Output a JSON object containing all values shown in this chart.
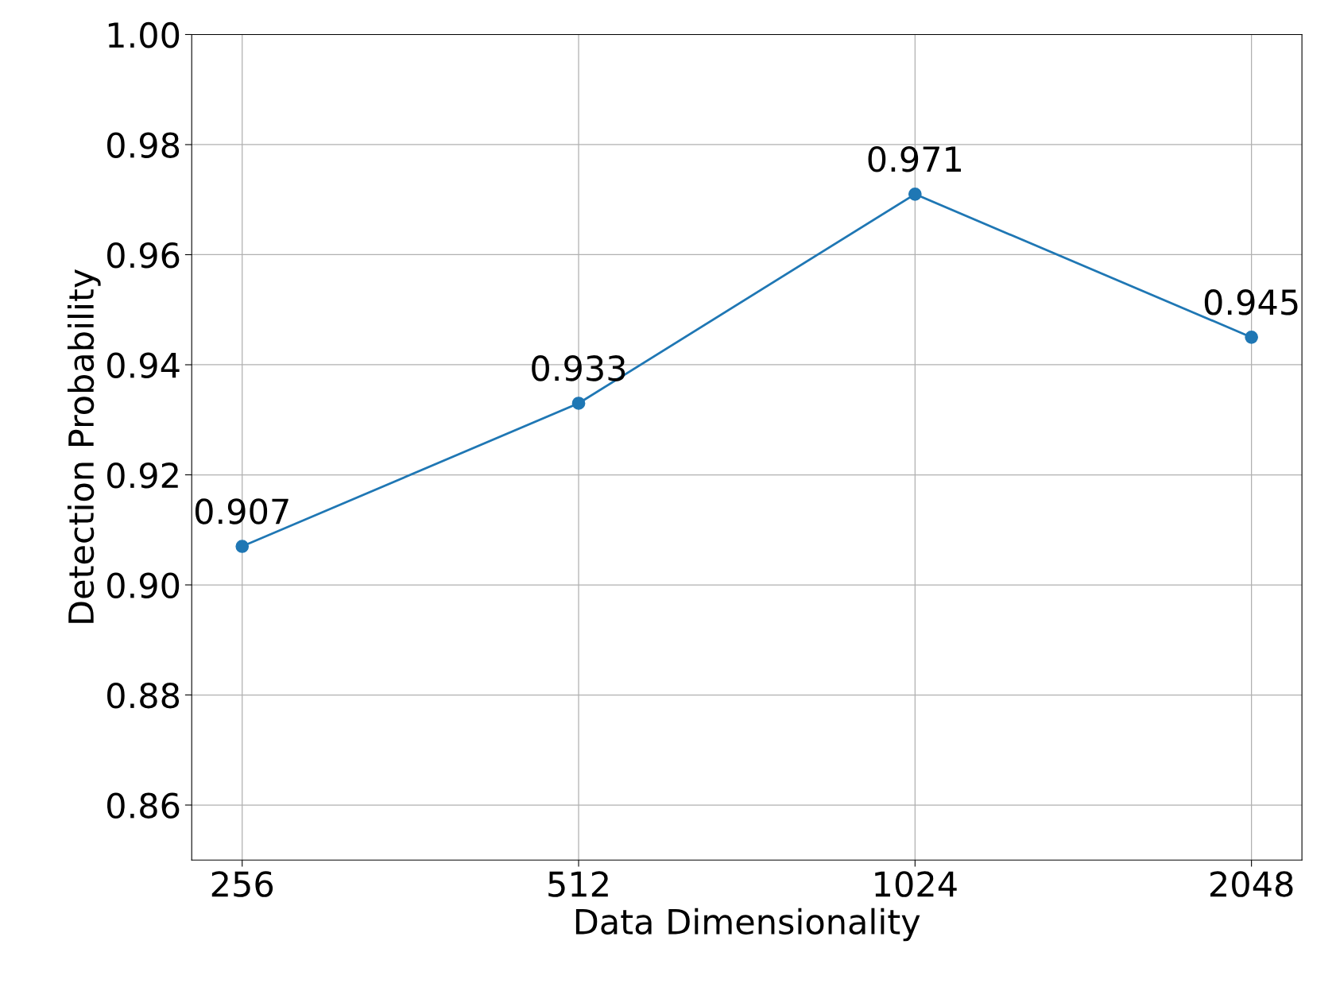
{
  "chart_data": {
    "type": "line",
    "xlabel": "Data Dimensionality",
    "ylabel": "Detection Probability",
    "categories": [
      "256",
      "512",
      "1024",
      "2048"
    ],
    "series": [
      {
        "color": "#1f77b4",
        "values": [
          0.907,
          0.933,
          0.971,
          0.945
        ]
      }
    ],
    "ylim": [
      0.85,
      1.0
    ],
    "yticks": [
      0.86,
      0.88,
      {
        "value": 0.9,
        "label": "0.90"
      },
      0.92,
      0.94,
      0.96,
      0.98,
      {
        "value": 1.0,
        "label": "1.00"
      }
    ],
    "grid": true,
    "marker": "circle",
    "line_style": "solid",
    "data_labels": true
  }
}
